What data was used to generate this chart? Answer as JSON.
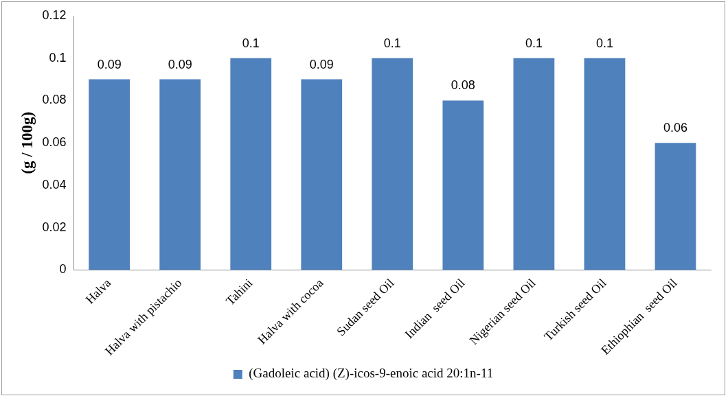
{
  "chart_data": {
    "type": "bar",
    "ylabel": "(g / 100g)",
    "categories": [
      "Halva",
      "Halva with pistachio",
      "Tahini",
      "Halva with cocoa",
      "Sudan seed Oil",
      "Indian  seed Oil",
      "Nigerian seed Oil",
      "Turkish seed Oil",
      "Ethiophian  seed Oil"
    ],
    "series": [
      {
        "name": "(Gadoleic acid) (Z)-icos-9-enoic acid 20:1n-11",
        "color": "#4f81bd",
        "values": [
          0.09,
          0.09,
          0.1,
          0.09,
          0.1,
          0.08,
          0.1,
          0.1,
          0.06
        ]
      }
    ],
    "ylim": [
      0,
      0.12
    ],
    "yticks": [
      0,
      0.02,
      0.04,
      0.06,
      0.08,
      0.1,
      0.12
    ],
    "grid": false,
    "legend": "bottom",
    "data_labels": true
  }
}
